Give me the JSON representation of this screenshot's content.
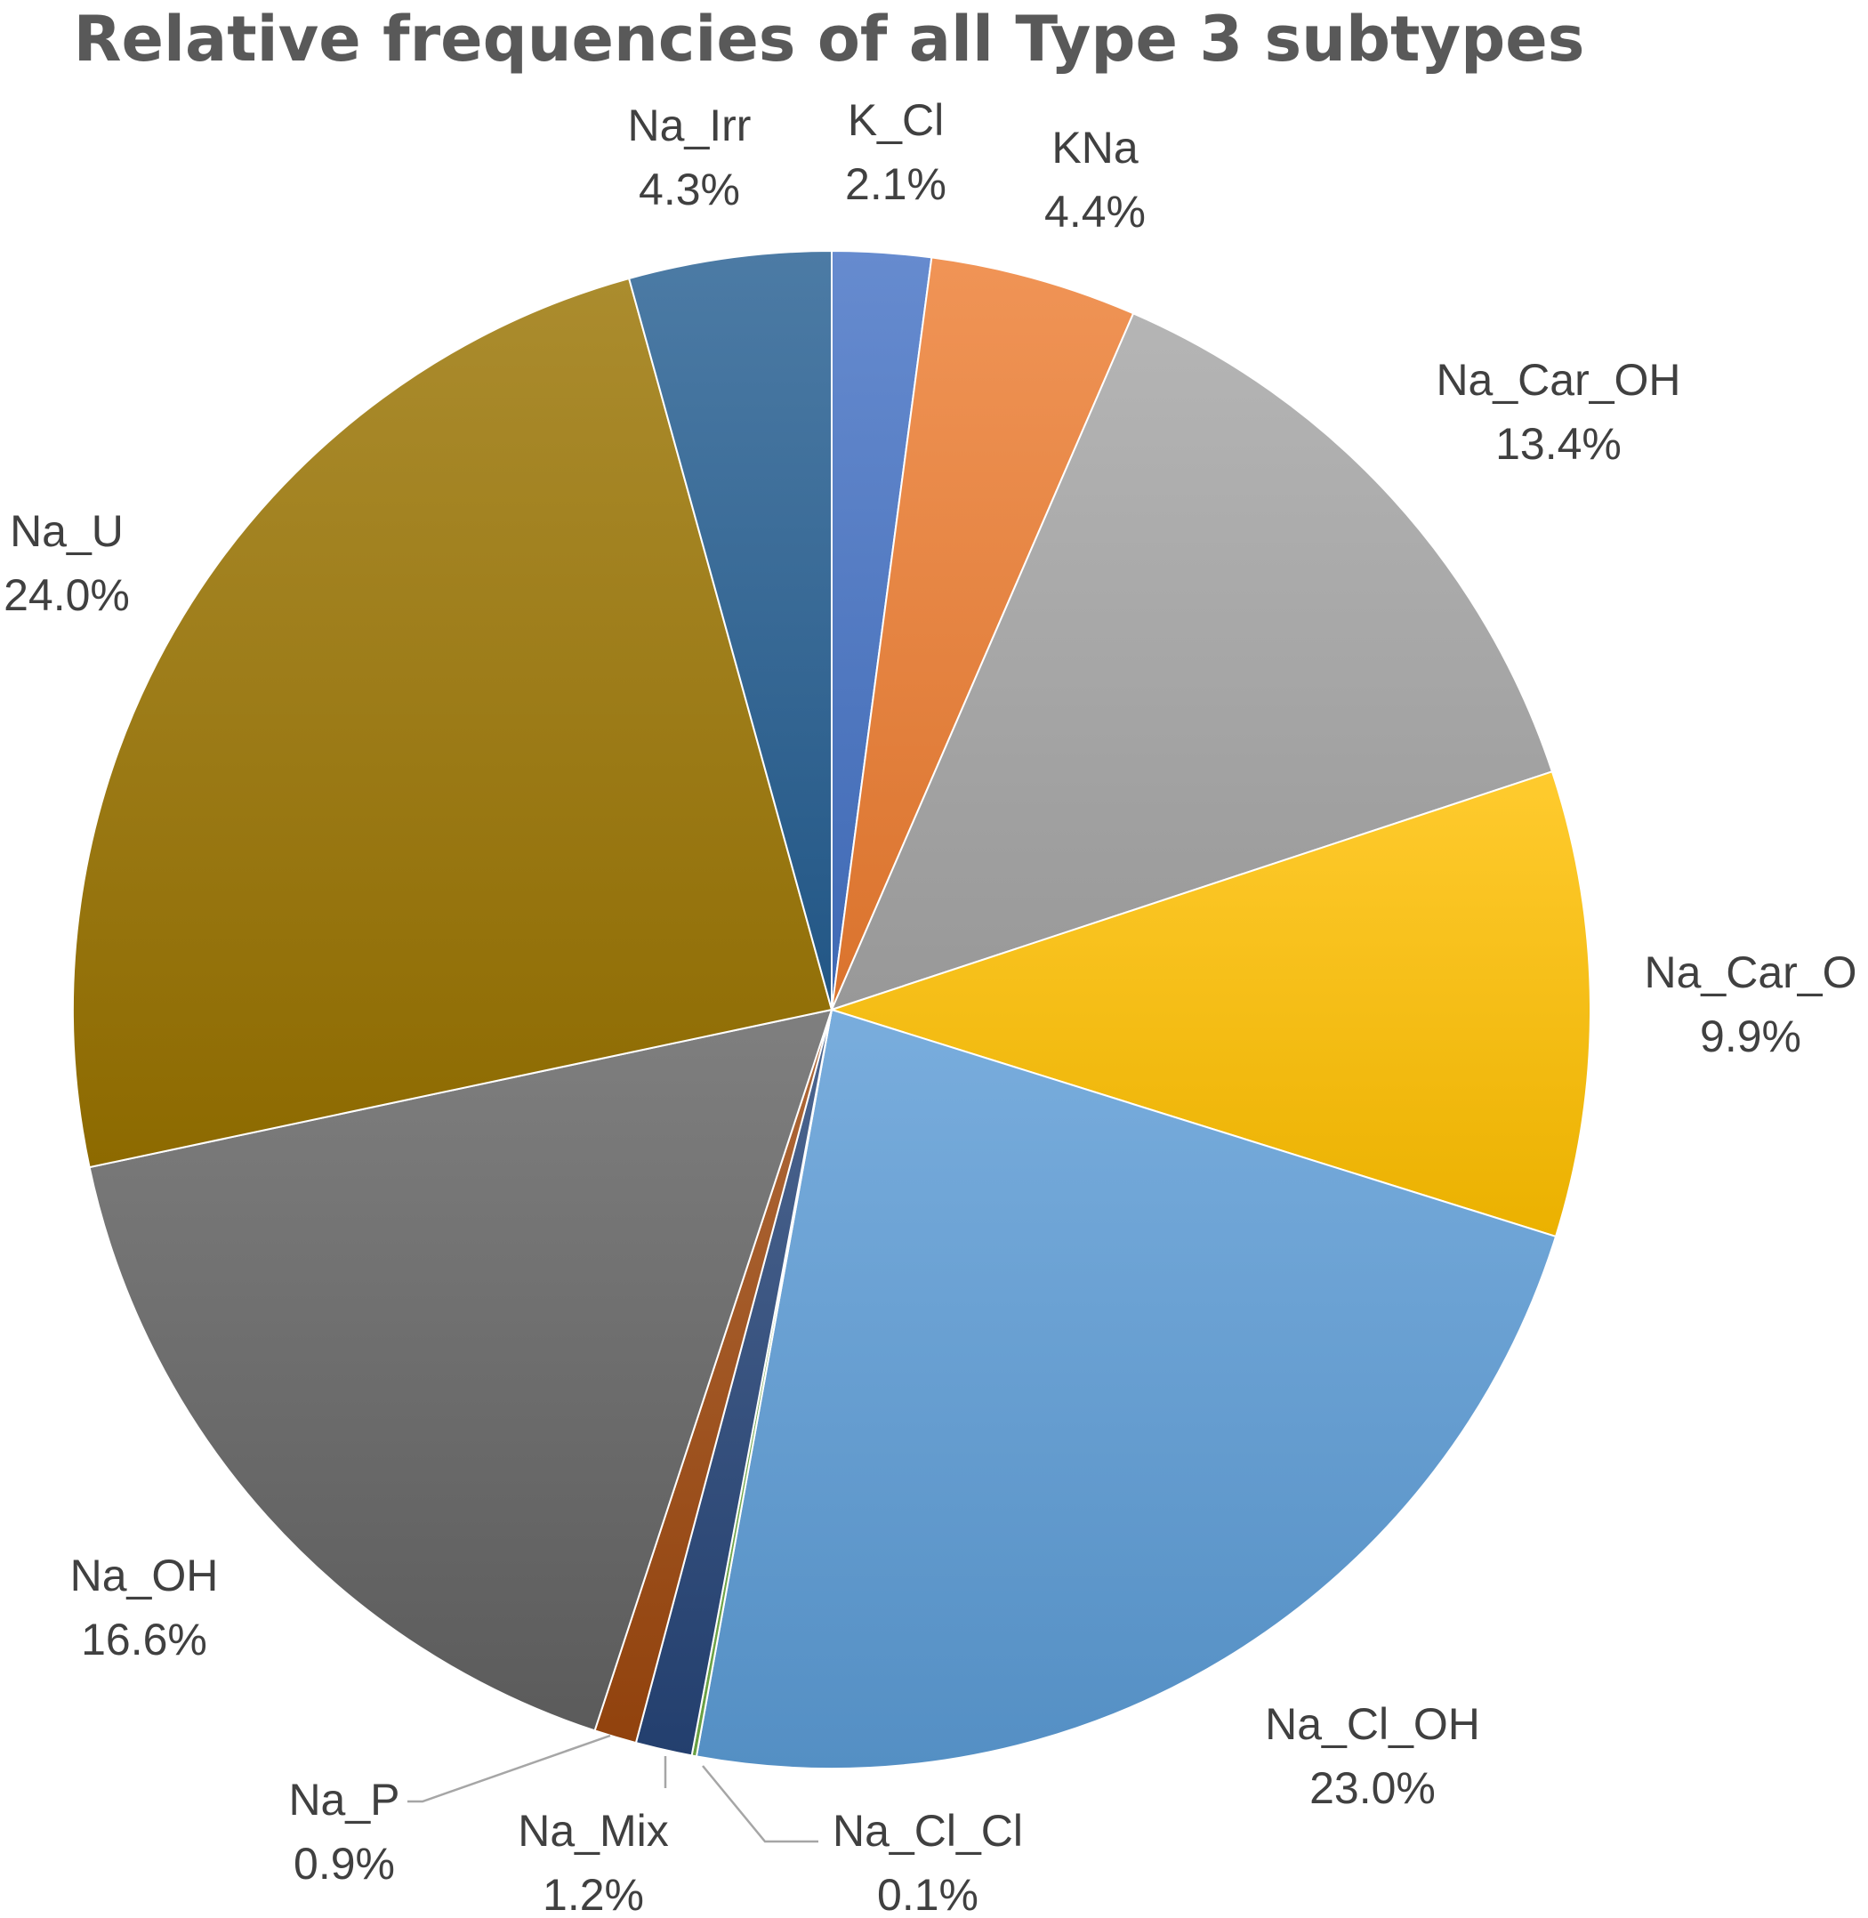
{
  "chart_data": {
    "type": "pie",
    "title": "Relative frequencies of all Type 3 subtypes",
    "slices": [
      {
        "name": "K_Cl",
        "value": 2.1,
        "label": "2.1%",
        "color": "#4472C4"
      },
      {
        "name": "KNa",
        "value": 4.4,
        "label": "4.4%",
        "color": "#ED7D31"
      },
      {
        "name": "Na_Car_OH",
        "value": 13.4,
        "label": "13.4%",
        "color": "#A5A5A5"
      },
      {
        "name": "Na_Car_O",
        "value": 9.9,
        "label": "9.9%",
        "color": "#FFC000"
      },
      {
        "name": "Na_Cl_OH",
        "value": 23.0,
        "label": "23.0%",
        "color": "#5B9BD5"
      },
      {
        "name": "Na_Cl_Cl",
        "value": 0.1,
        "label": "0.1%",
        "color": "#70AD47"
      },
      {
        "name": "Na_Mix",
        "value": 1.2,
        "label": "1.2%",
        "color": "#264478"
      },
      {
        "name": "Na_P",
        "value": 0.9,
        "label": "0.9%",
        "color": "#9E480E"
      },
      {
        "name": "Na_OH",
        "value": 16.6,
        "label": "16.6%",
        "color": "#636363"
      },
      {
        "name": "Na_U",
        "value": 24.0,
        "label": "24.0%",
        "color": "#997300"
      },
      {
        "name": "Na_Irr",
        "value": 4.3,
        "label": "4.3%",
        "color": "#255E91"
      }
    ],
    "start_angle": "12 o'clock",
    "direction": "clockwise",
    "legend": "none",
    "data_labels": "category name and percentage"
  }
}
